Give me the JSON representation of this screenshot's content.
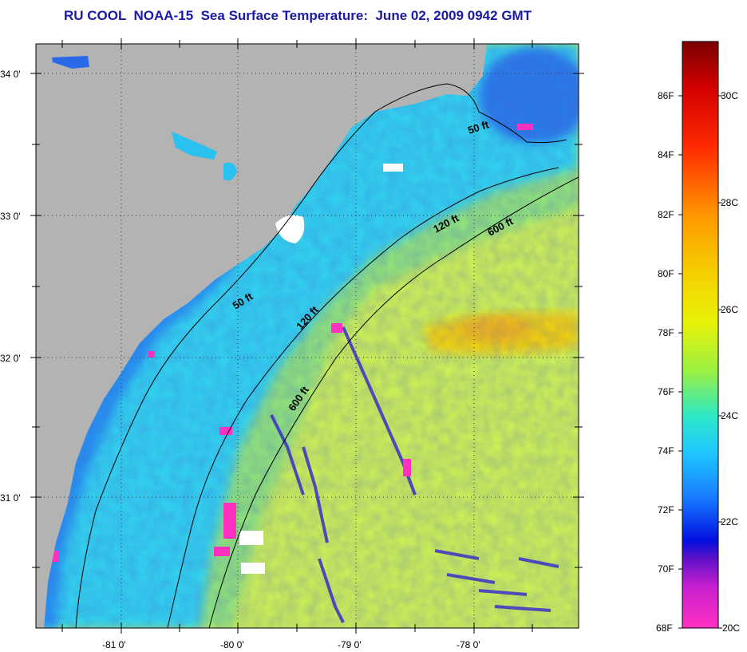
{
  "title": "RU COOL  NOAA-15  Sea Surface Temperature:  June 02, 2009 0942 GMT",
  "map": {
    "lat_labels": [
      "34 0'",
      "33 0'",
      "32 0'",
      "31 0'"
    ],
    "lon_labels": [
      "-81 0'",
      "-80 0'",
      "-79 0'",
      "-78 0'"
    ],
    "contour_labels": [
      "50 ft",
      "120 ft",
      "600 ft",
      "50 ft",
      "120 ft",
      "600 ft"
    ]
  },
  "colorbar": {
    "fahrenheit_labels": [
      "86F",
      "84F",
      "82F",
      "80F",
      "78F",
      "76F",
      "74F",
      "72F",
      "70F",
      "68F"
    ],
    "celsius_labels": [
      "30C",
      "28C",
      "26C",
      "24C",
      "22C",
      "20C"
    ]
  },
  "colors": {
    "land": "#b3b3b3",
    "ocean_shelf": "#2cc6ff",
    "ocean_offshore": "#c8f04a",
    "warm_band": "#f4d200",
    "title": "#1a1aa8"
  }
}
